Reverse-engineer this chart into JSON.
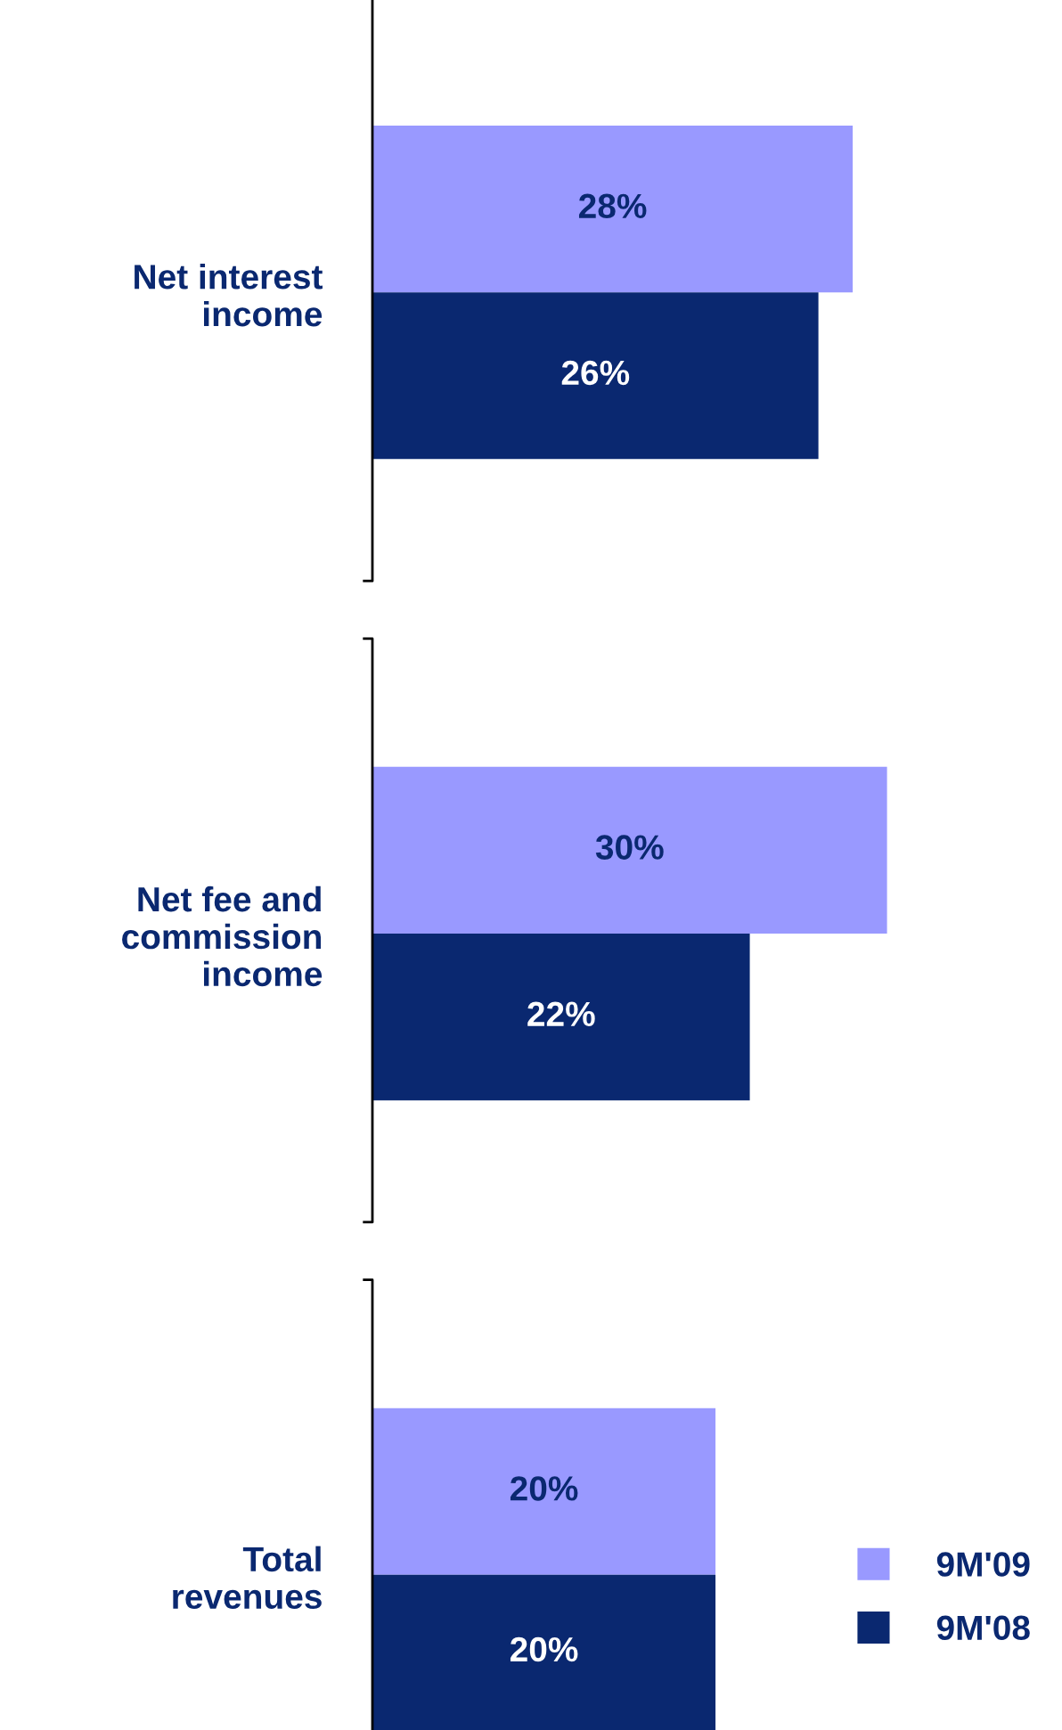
{
  "chart_data": {
    "type": "bar",
    "orientation": "horizontal",
    "categories": [
      "Net interest\nincome",
      "Net fee and\ncommission\nincome",
      "Total\nrevenues"
    ],
    "legend": "bottom right",
    "series": [
      {
        "name": "9M'09",
        "color": "#9999ff",
        "values": [
          28,
          30,
          20
        ],
        "value_labels": [
          "28%",
          "30%",
          "20%"
        ]
      },
      {
        "name": "9M'08",
        "color": "#0a2870",
        "values": [
          26,
          22,
          20
        ],
        "value_labels": [
          "26%",
          "22%",
          "20%"
        ]
      }
    ]
  }
}
